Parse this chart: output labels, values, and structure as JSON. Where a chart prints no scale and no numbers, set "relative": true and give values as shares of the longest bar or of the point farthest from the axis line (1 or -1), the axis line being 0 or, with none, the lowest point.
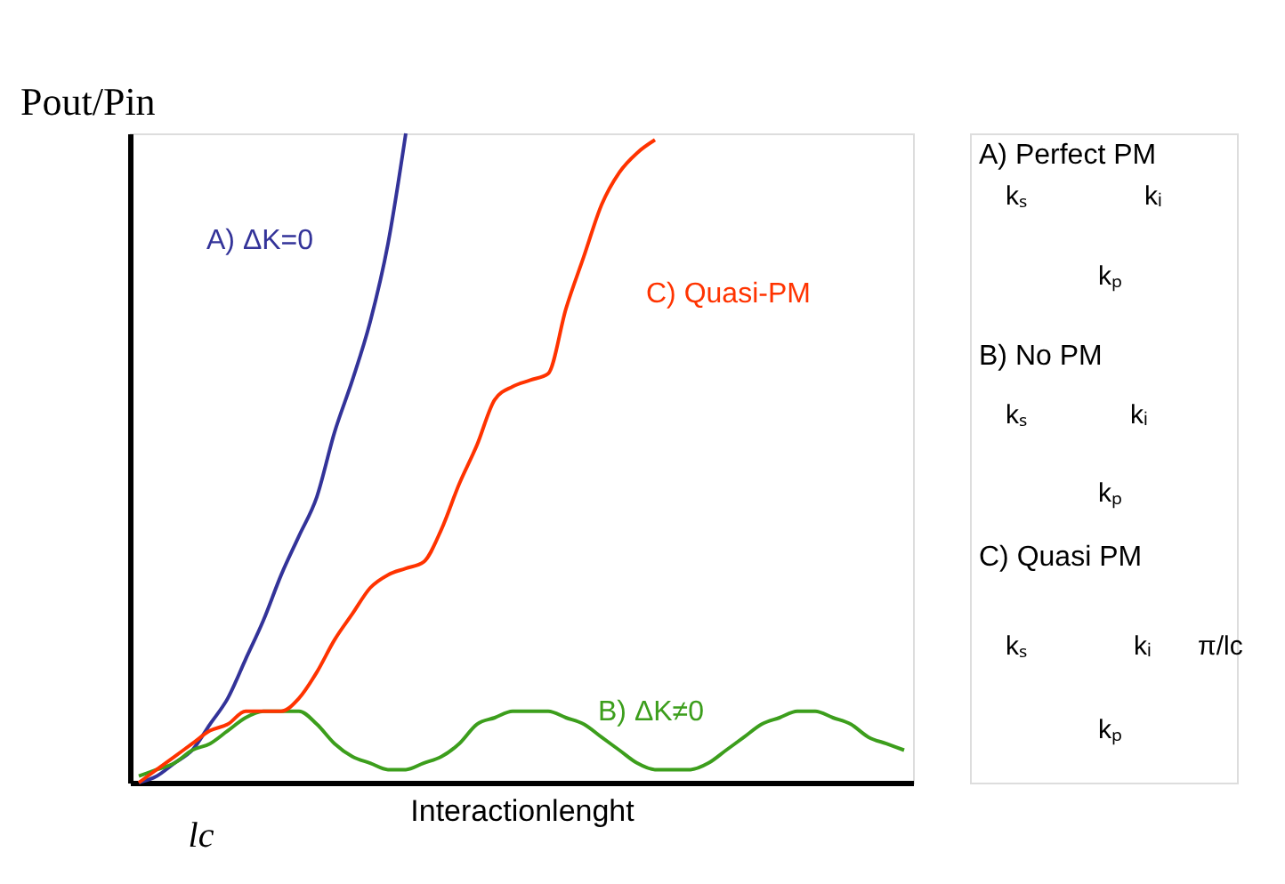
{
  "chart_data": {
    "type": "line",
    "relative": true,
    "ylabel": "Pout/Pin",
    "xlabel": "Interactionlenght",
    "marker": "none",
    "line_style": "solid",
    "categories": [
      null,
      null,
      null,
      null,
      null,
      null,
      null,
      null,
      null,
      null,
      null,
      null,
      null,
      null,
      null,
      null,
      null,
      null,
      null,
      null,
      null,
      null,
      null,
      null,
      null,
      null,
      null,
      null,
      null,
      null,
      null,
      null,
      null,
      null,
      null,
      null,
      null,
      null,
      null,
      null,
      null,
      null,
      null,
      null
    ],
    "series": [
      {
        "name": "A) ΔK=0",
        "color": "#333399",
        "values": [
          0.0,
          0.01,
          0.03,
          0.05,
          0.09,
          0.13,
          0.19,
          0.25,
          0.32,
          0.38,
          0.44,
          0.54,
          0.62,
          0.71,
          0.83,
          1.0,
          null,
          null,
          null,
          null,
          null,
          null,
          null,
          null,
          null,
          null,
          null,
          null,
          null,
          null,
          null,
          null,
          null,
          null,
          null,
          null,
          null,
          null,
          null,
          null,
          null,
          null,
          null,
          null
        ]
      },
      {
        "name": "B) ΔK≠0",
        "color": "#3c9e1c",
        "values": [
          0.01,
          0.02,
          0.03,
          0.05,
          0.06,
          0.08,
          0.1,
          0.11,
          0.11,
          0.11,
          0.09,
          0.06,
          0.04,
          0.03,
          0.02,
          0.02,
          0.03,
          0.04,
          0.06,
          0.09,
          0.1,
          0.11,
          0.11,
          0.11,
          0.1,
          0.09,
          0.07,
          0.05,
          0.03,
          0.02,
          0.02,
          0.02,
          0.03,
          0.05,
          0.07,
          0.09,
          0.1,
          0.11,
          0.11,
          0.1,
          0.09,
          0.07,
          0.06,
          0.05
        ]
      },
      {
        "name": "C) Quasi-PM",
        "color": "#ff3300",
        "values": [
          0.0,
          0.02,
          0.04,
          0.06,
          0.08,
          0.09,
          0.11,
          0.11,
          0.11,
          0.13,
          0.17,
          0.22,
          0.26,
          0.3,
          0.32,
          0.33,
          0.34,
          0.39,
          0.46,
          0.52,
          0.59,
          0.61,
          0.62,
          0.63,
          0.73,
          0.81,
          0.89,
          0.94,
          0.97,
          0.99,
          null,
          null,
          null,
          null,
          null,
          null,
          null,
          null,
          null,
          null,
          null,
          null,
          null,
          null
        ]
      }
    ],
    "annotations": [
      "lc",
      "A) Perfect PM",
      "kₛ",
      "kᵢ",
      "kₚ",
      "B) No PM",
      "kₛ",
      "kᵢ",
      "kₚ",
      "C) Quasi PM",
      "kₛ",
      "kᵢ",
      "π/lc",
      "kₚ"
    ]
  }
}
